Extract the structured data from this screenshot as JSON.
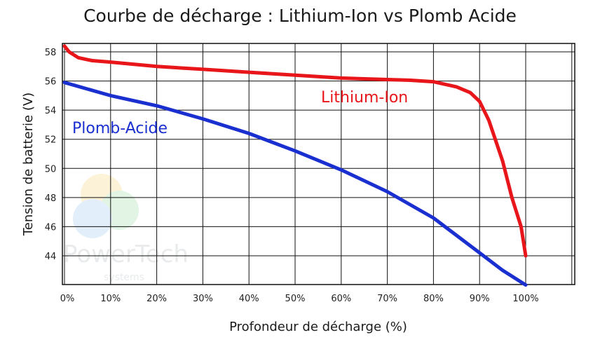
{
  "chart_data": {
    "type": "line",
    "title": "Courbe de décharge : Lithium-Ion vs Plomb Acide",
    "xlabel": "Profondeur de décharge (%)",
    "ylabel": "Tension de batterie (V)",
    "xlim": [
      0,
      110
    ],
    "ylim": [
      42,
      58.5
    ],
    "x_ticks": [
      0,
      10,
      20,
      30,
      40,
      50,
      60,
      70,
      80,
      90,
      100
    ],
    "x_tick_labels": [
      "0%",
      "10%",
      "20%",
      "30%",
      "40%",
      "50%",
      "60%",
      "70%",
      "80%",
      "90%",
      "100%"
    ],
    "y_ticks": [
      44,
      46,
      48,
      50,
      52,
      54,
      56,
      58
    ],
    "y_tick_labels": [
      "44",
      "46",
      "48",
      "50",
      "52",
      "54",
      "56",
      "58"
    ],
    "grid": true,
    "legend": "inline labels",
    "series": [
      {
        "name": "Lithium-Ion",
        "color": "#e8161a",
        "x": [
          0,
          1,
          3,
          6,
          10,
          20,
          30,
          40,
          50,
          60,
          70,
          75,
          80,
          85,
          88,
          90,
          92,
          95,
          97,
          99,
          100
        ],
        "y": [
          58.4,
          58.0,
          57.6,
          57.4,
          57.3,
          57.0,
          56.8,
          56.6,
          56.4,
          56.2,
          56.1,
          56.05,
          55.95,
          55.6,
          55.2,
          54.6,
          53.3,
          50.5,
          48.0,
          46.0,
          44.0
        ]
      },
      {
        "name": "Plomb-Acide",
        "color": "#1a2fcf",
        "x": [
          0,
          10,
          20,
          30,
          40,
          50,
          60,
          70,
          80,
          90,
          95,
          100
        ],
        "y": [
          55.9,
          55.0,
          54.3,
          53.4,
          52.4,
          51.2,
          49.9,
          48.4,
          46.6,
          44.2,
          43.0,
          42.0
        ]
      }
    ],
    "annotations": [
      {
        "text": "Lithium-Ion",
        "color": "#e8161a"
      },
      {
        "text": "Plomb-Acide",
        "color": "#1a2fcf"
      }
    ],
    "watermark": {
      "brand": "PowerTech",
      "sub": "systems"
    }
  }
}
